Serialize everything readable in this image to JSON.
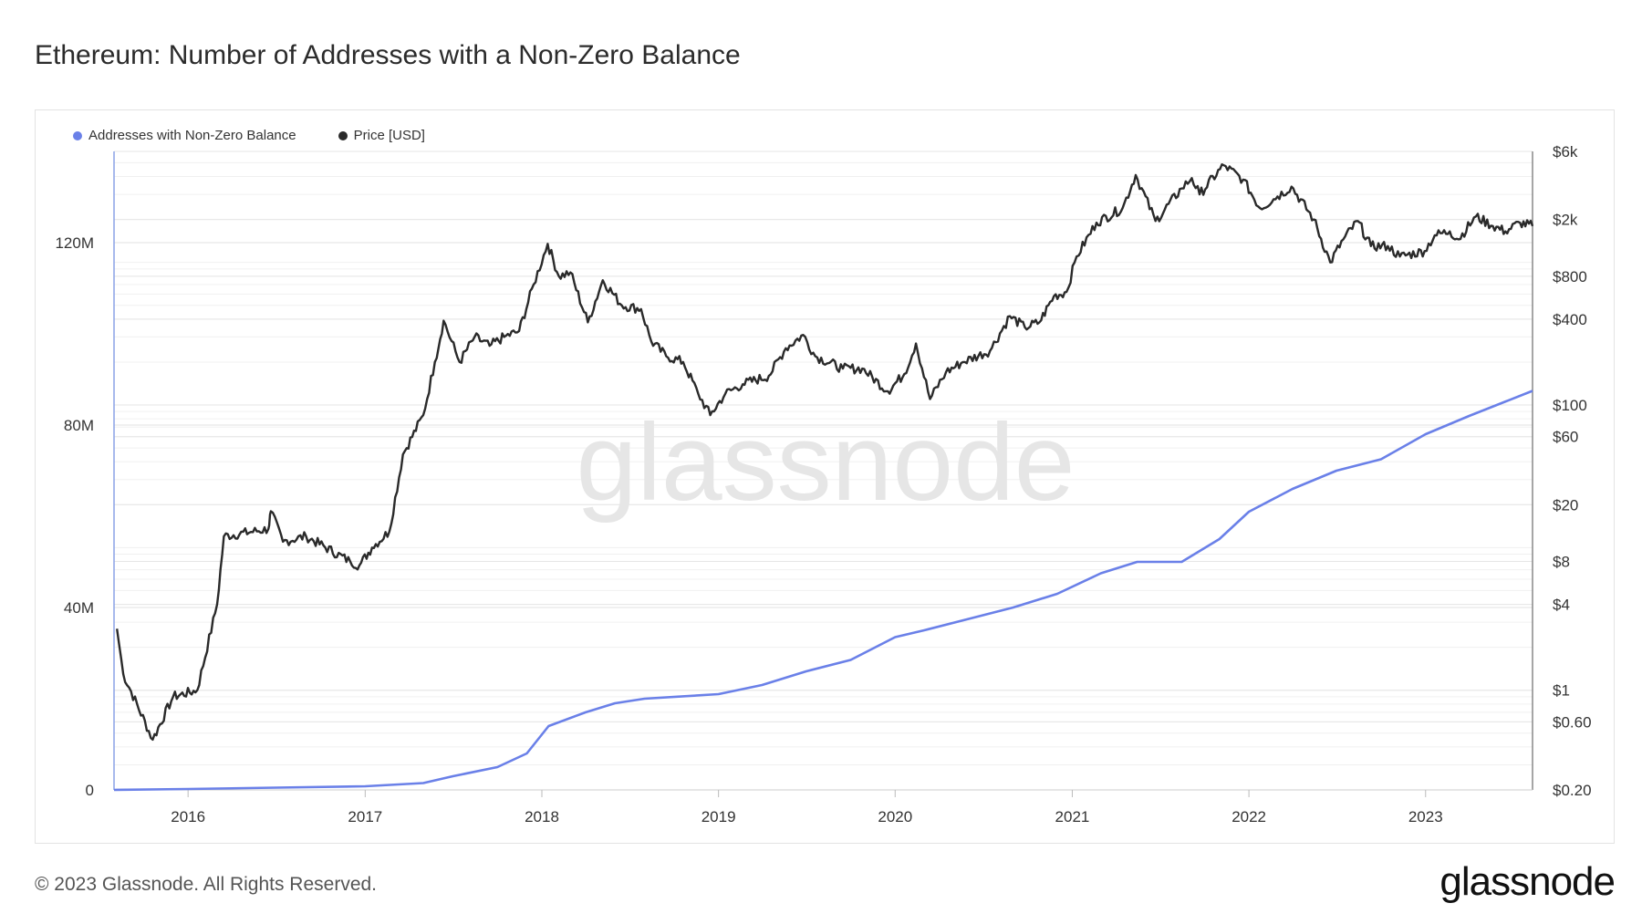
{
  "page": {
    "title": "Ethereum: Number of Addresses with a Non-Zero Balance",
    "footer": "© 2023 Glassnode. All Rights Reserved.",
    "brand": "glassnode",
    "watermark": "glassnode"
  },
  "colors": {
    "addresses": "#6a80e8",
    "price": "#2a2a2a",
    "grid": "#ececec",
    "axis": "#8aa2e6"
  },
  "chart_data": {
    "type": "line",
    "title": "Ethereum: Number of Addresses with a Non-Zero Balance",
    "x_ticks": [
      "2016",
      "2017",
      "2018",
      "2019",
      "2020",
      "2021",
      "2022",
      "2023"
    ],
    "xlim": [
      "2015-08-01",
      "2023-08-10"
    ],
    "y_left": {
      "label": "",
      "ticks": [
        "0",
        "40M",
        "80M",
        "120M"
      ],
      "tick_values": [
        0,
        40000000,
        80000000,
        120000000
      ],
      "ylim": [
        0,
        140000000
      ]
    },
    "y_right": {
      "label": "",
      "scale": "log",
      "ticks": [
        "$6k",
        "$2k",
        "$800",
        "$400",
        "$100",
        "$60",
        "$20",
        "$8",
        "$4",
        "$1",
        "$0.60",
        "$0.20"
      ],
      "tick_values": [
        6000,
        2000,
        800,
        400,
        100,
        60,
        20,
        8,
        4,
        1,
        0.6,
        0.2
      ],
      "ylim": [
        0.2,
        6000
      ]
    },
    "legend_position": "top-left",
    "grid": true,
    "series": [
      {
        "name": "Addresses with Non-Zero Balance",
        "axis": "left",
        "x": [
          "2015-08-01",
          "2016-01-01",
          "2016-07-01",
          "2017-01-01",
          "2017-05-01",
          "2017-07-01",
          "2017-10-01",
          "2017-12-01",
          "2018-01-15",
          "2018-04-01",
          "2018-06-01",
          "2018-08-01",
          "2019-01-01",
          "2019-04-01",
          "2019-07-01",
          "2019-10-01",
          "2020-01-01",
          "2020-03-01",
          "2020-06-01",
          "2020-09-01",
          "2020-12-01",
          "2021-03-01",
          "2021-05-15",
          "2021-08-15",
          "2021-11-01",
          "2022-01-01",
          "2022-04-01",
          "2022-07-01",
          "2022-10-01",
          "2023-01-01",
          "2023-04-01",
          "2023-08-10"
        ],
        "values": [
          0,
          200000,
          500000,
          800000,
          1500000,
          3000000,
          5000000,
          8000000,
          14000000,
          17000000,
          19000000,
          20000000,
          21000000,
          23000000,
          26000000,
          28500000,
          33500000,
          35000000,
          37500000,
          40000000,
          43000000,
          47500000,
          50000000,
          50000000,
          55000000,
          61000000,
          66000000,
          70000000,
          72500000,
          78000000,
          82000000,
          87500000
        ]
      },
      {
        "name": "Price [USD]",
        "axis": "right",
        "x": [
          "2015-08-07",
          "2015-08-20",
          "2015-10-20",
          "2015-12-01",
          "2016-01-20",
          "2016-03-01",
          "2016-03-15",
          "2016-06-15",
          "2016-06-20",
          "2016-07-15",
          "2016-09-01",
          "2016-12-01",
          "2016-12-20",
          "2017-01-15",
          "2017-02-20",
          "2017-03-20",
          "2017-05-01",
          "2017-05-25",
          "2017-06-12",
          "2017-07-15",
          "2017-08-15",
          "2017-09-15",
          "2017-10-15",
          "2017-11-15",
          "2017-12-15",
          "2018-01-13",
          "2018-02-05",
          "2018-03-01",
          "2018-04-06",
          "2018-05-07",
          "2018-06-15",
          "2018-07-25",
          "2018-08-15",
          "2018-09-15",
          "2018-10-20",
          "2018-11-20",
          "2018-12-15",
          "2019-01-15",
          "2019-02-20",
          "2019-04-15",
          "2019-05-20",
          "2019-06-25",
          "2019-07-20",
          "2019-09-15",
          "2019-10-25",
          "2019-12-17",
          "2020-01-20",
          "2020-02-13",
          "2020-03-13",
          "2020-04-15",
          "2020-05-20",
          "2020-07-15",
          "2020-08-25",
          "2020-09-25",
          "2020-10-25",
          "2020-11-24",
          "2020-12-20",
          "2021-01-10",
          "2021-02-20",
          "2021-04-15",
          "2021-05-12",
          "2021-06-22",
          "2021-08-15",
          "2021-09-05",
          "2021-09-21",
          "2021-11-10",
          "2021-12-20",
          "2022-01-24",
          "2022-03-01",
          "2022-03-30",
          "2022-05-15",
          "2022-06-18",
          "2022-07-15",
          "2022-08-14",
          "2022-09-10",
          "2022-10-15",
          "2022-11-09",
          "2022-12-30",
          "2023-01-20",
          "2023-02-20",
          "2023-03-10",
          "2023-04-15",
          "2023-05-20",
          "2023-06-15",
          "2023-07-15",
          "2023-08-10"
        ],
        "values": [
          2.7,
          1.3,
          0.45,
          0.9,
          1.0,
          4.0,
          12.0,
          13.5,
          18.0,
          11.0,
          12.0,
          8.0,
          7.5,
          10.0,
          13.0,
          45.0,
          85.0,
          200.0,
          390.0,
          200.0,
          300.0,
          260.0,
          300.0,
          330.0,
          700.0,
          1350.0,
          800.0,
          850.0,
          380.0,
          750.0,
          500.0,
          470.0,
          280.0,
          220.0,
          200.0,
          120.0,
          85.0,
          120.0,
          140.0,
          160.0,
          250.0,
          310.0,
          220.0,
          180.0,
          180.0,
          125.0,
          165.0,
          270.0,
          110.0,
          170.0,
          200.0,
          240.0,
          420.0,
          350.0,
          380.0,
          580.0,
          620.0,
          1100.0,
          1900.0,
          2400.0,
          4100.0,
          1950.0,
          3300.0,
          3900.0,
          3000.0,
          4800.0,
          3800.0,
          2400.0,
          2900.0,
          3400.0,
          2000.0,
          1000.0,
          1450.0,
          1950.0,
          1300.0,
          1300.0,
          1100.0,
          1200.0,
          1550.0,
          1650.0,
          1450.0,
          2100.0,
          1800.0,
          1650.0,
          1900.0,
          1800.0
        ]
      }
    ]
  }
}
